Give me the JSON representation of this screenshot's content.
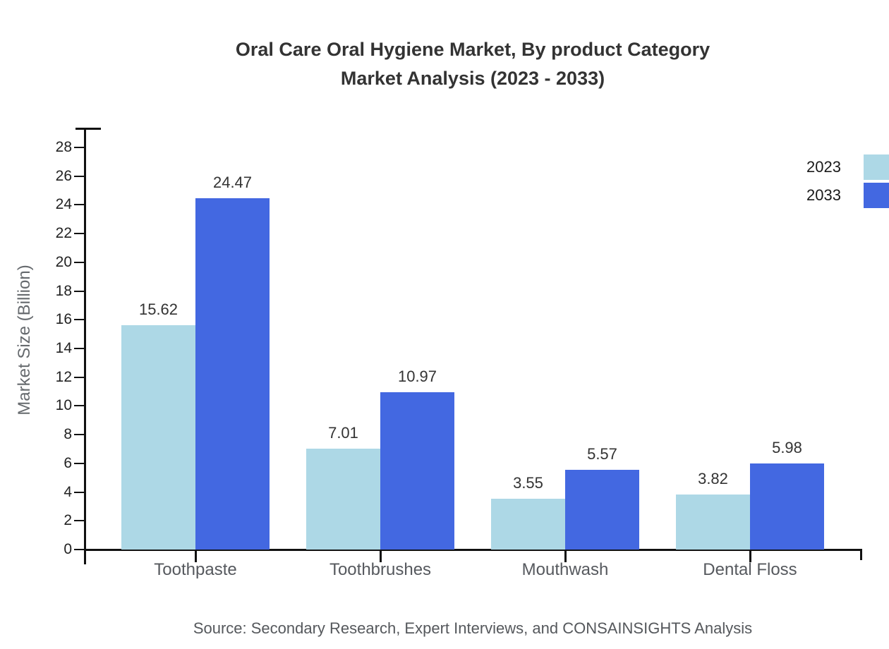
{
  "title": {
    "line1": "Oral Care Oral Hygiene Market, By product Category",
    "line2": "Market Analysis (2023 - 2033)"
  },
  "y_axis": {
    "label": "Market Size (Billion)",
    "tick_min": 0,
    "tick_max": 28,
    "tick_step": 2
  },
  "source": "Source: Secondary Research, Expert Interviews, and CONSAINSIGHTS Analysis",
  "colors": {
    "series_2023": "#ADD8E6",
    "series_2033": "#4368E1",
    "axis": "#111111"
  },
  "chart_data": {
    "type": "bar",
    "title": "Oral Care Oral Hygiene Market, By product Category Market Analysis (2023 - 2033)",
    "categories": [
      "Toothpaste",
      "Toothbrushes",
      "Mouthwash",
      "Dental Floss"
    ],
    "series": [
      {
        "name": "2023",
        "color": "#ADD8E6",
        "values": [
          15.62,
          7.01,
          3.55,
          3.82
        ]
      },
      {
        "name": "2033",
        "color": "#4368E1",
        "values": [
          24.47,
          10.97,
          5.57,
          5.98
        ]
      }
    ],
    "xlabel": "",
    "ylabel": "Market Size (Billion)",
    "ylim": [
      0,
      28
    ],
    "y_tick_step": 2,
    "grid": false,
    "legend_position": "upper right",
    "bar_value_labels": true
  }
}
